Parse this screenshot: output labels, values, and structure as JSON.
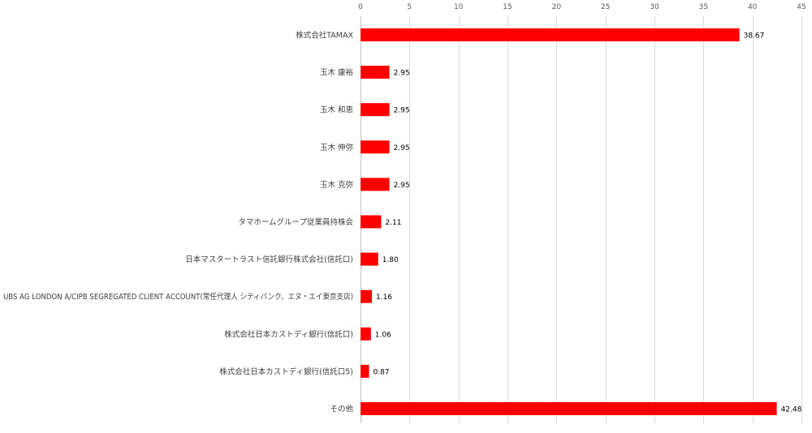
{
  "chart_data": {
    "type": "bar",
    "orientation": "horizontal",
    "categories": [
      "株式会社TAMAX",
      "玉木 康裕",
      "玉木 和恵",
      "玉木 伸弥",
      "玉木 克弥",
      "タマホームグループ従業員持株会",
      "日本マスタートラスト信託銀行株式会社(信託口)",
      "UBS AG LONDON A/CIPB SEGREGATED CLIENT ACCOUNT(常任代理人 シティバンク、エヌ・エイ東京支店)",
      "株式会社日本カストディ銀行(信託口)",
      "株式会社日本カストディ銀行(信託口5)",
      "その他"
    ],
    "values": [
      38.67,
      2.95,
      2.95,
      2.95,
      2.95,
      2.11,
      1.8,
      1.16,
      1.06,
      0.87,
      42.48
    ],
    "value_labels": [
      "38.67",
      "2.95",
      "2.95",
      "2.95",
      "2.95",
      "2.11",
      "1.80",
      "1.16",
      "1.06",
      "0.87",
      "42.48"
    ],
    "xlim": [
      0,
      45
    ],
    "xticks": [
      0,
      5,
      10,
      15,
      20,
      25,
      30,
      35,
      40,
      45
    ],
    "xaxis_position": "top",
    "grid": true,
    "bar_color": "#ff0000",
    "title": "",
    "xlabel": "",
    "ylabel": ""
  }
}
